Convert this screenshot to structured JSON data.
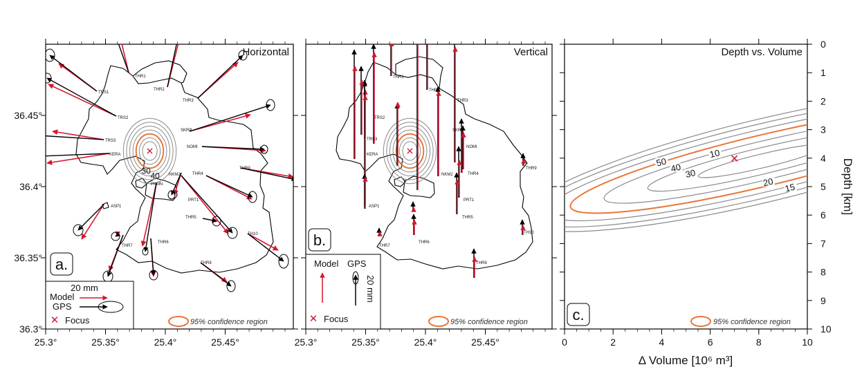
{
  "colors": {
    "model": "#d6152f",
    "gps": "#000000",
    "focus": "#d6152f",
    "confidence": "#e8763a",
    "contour": "#8a8a8a"
  },
  "panel_a": {
    "title": "Horizontal",
    "letter": "a.",
    "legend": {
      "scale": "20 mm",
      "model": "Model",
      "gps": "GPS",
      "focus": "Focus"
    },
    "confidence": "95% confidence region",
    "contour_labels": [
      "30",
      "40"
    ]
  },
  "panel_b": {
    "title": "Vertical",
    "letter": "b.",
    "legend": {
      "model": "Model",
      "gps": "GPS",
      "scale": "20 mm",
      "focus": "Focus"
    },
    "confidence": "95% confidence region"
  },
  "panel_c": {
    "title": "Depth vs. Volume",
    "letter": "c.",
    "confidence": "95% confidence region",
    "contour_labels": [
      "10",
      "15",
      "20",
      "30",
      "40",
      "50"
    ]
  },
  "stations": [
    "THR1",
    "THR2",
    "THR3",
    "TRS1",
    "TRS2",
    "TRS3",
    "KERA",
    "SKRP",
    "NOMI",
    "THR9",
    "THR4",
    "NKM2",
    "NKMI",
    "PKMN",
    "PRT1",
    "THR5",
    "TH10",
    "ASP1",
    "THR7",
    "THR6",
    "THR8"
  ],
  "chart_data": [
    {
      "type": "scatter",
      "title": "Horizontal",
      "xlabel": "",
      "ylabel": "",
      "xlim": [
        25.3,
        25.5
      ],
      "ylim": [
        36.3,
        36.5
      ],
      "x_ticks": [
        "25.3°",
        "25.35°",
        "25.4°",
        "25.45°"
      ],
      "y_ticks": [
        "36.3°",
        "36.35°",
        "36.4°",
        "36.45°"
      ],
      "focus": {
        "lon": 25.387,
        "lat": 36.425
      }
    },
    {
      "type": "scatter",
      "title": "Vertical",
      "xlabel": "",
      "ylabel": "",
      "xlim": [
        25.3,
        25.5
      ],
      "ylim": [
        36.3,
        36.5
      ],
      "x_ticks": [
        "25.3°",
        "25.35°",
        "25.4°",
        "25.45°"
      ],
      "focus": {
        "lon": 25.387,
        "lat": 36.425
      }
    },
    {
      "type": "line",
      "title": "Depth vs. Volume",
      "xlabel": "Δ Volume [10⁶ m³]",
      "ylabel": "Depth [km]",
      "xlim": [
        0,
        10
      ],
      "ylim": [
        10,
        0
      ],
      "x_ticks": [
        "0",
        "2",
        "4",
        "6",
        "8",
        "10"
      ],
      "y_ticks": [
        "0",
        "1",
        "2",
        "3",
        "4",
        "5",
        "6",
        "7",
        "8",
        "9",
        "10"
      ],
      "focus": {
        "volume": 7.0,
        "depth": 4.0
      }
    }
  ]
}
